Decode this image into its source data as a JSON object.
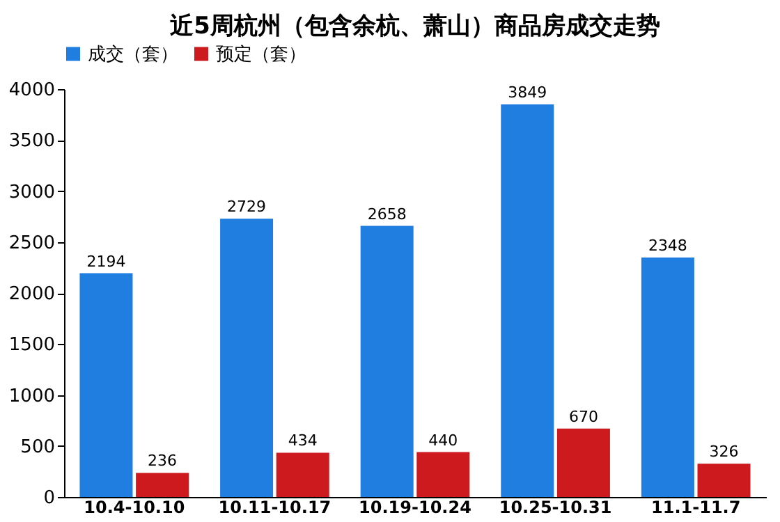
{
  "chart_data": {
    "type": "bar",
    "title": "近5周杭州（包含余杭、萧山）商品房成交走势",
    "categories": [
      "10.4-10.10",
      "10.11-10.17",
      "10.19-10.24",
      "10.25-10.31",
      "11.1-11.7"
    ],
    "series": [
      {
        "name": "成交（套）",
        "color": "#1f7ee0",
        "values": [
          2194,
          2729,
          2658,
          3849,
          2348
        ]
      },
      {
        "name": "预定（套）",
        "color": "#cc1a1f",
        "values": [
          236,
          434,
          440,
          670,
          326
        ]
      }
    ],
    "ylim": [
      0,
      4000
    ],
    "yticks": [
      0,
      500,
      1000,
      1500,
      2000,
      2500,
      3000,
      3500,
      4000
    ],
    "grid": false,
    "legend": "top",
    "data_labels": true
  }
}
